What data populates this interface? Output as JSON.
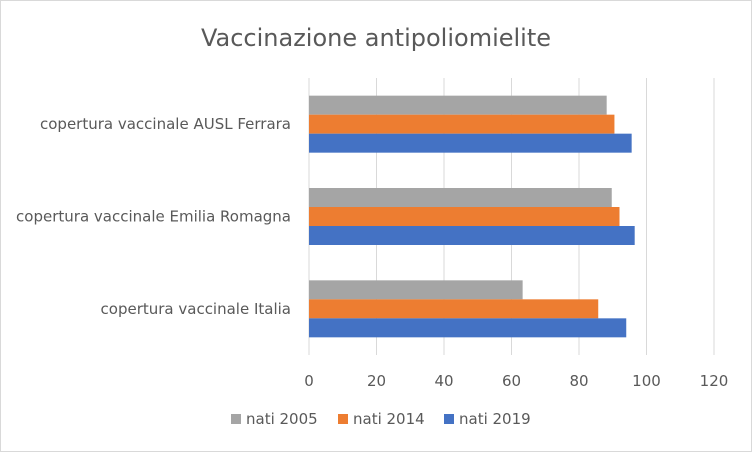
{
  "chart_data": {
    "type": "bar",
    "orientation": "horizontal",
    "title": "Vaccinazione antipoliomielite",
    "xlabel": "",
    "ylabel": "",
    "categories": [
      "copertura vaccinale AUSL Ferrara",
      "copertura vaccinale Emilia Romagna",
      "copertura vaccinale Italia"
    ],
    "series": [
      {
        "name": "nati 2005",
        "color": "#a5a5a5",
        "values": [
          88.2,
          89.7,
          63.3
        ]
      },
      {
        "name": "nati 2014",
        "color": "#ed7d31",
        "values": [
          90.5,
          92.0,
          85.7
        ]
      },
      {
        "name": "nati 2019",
        "color": "#4472c4",
        "values": [
          95.6,
          96.5,
          94.0
        ]
      }
    ],
    "xlim": [
      0,
      120
    ],
    "xticks": [
      "0",
      "20",
      "40",
      "60",
      "80",
      "100",
      "120"
    ],
    "grid": true,
    "legend_position": "bottom"
  }
}
